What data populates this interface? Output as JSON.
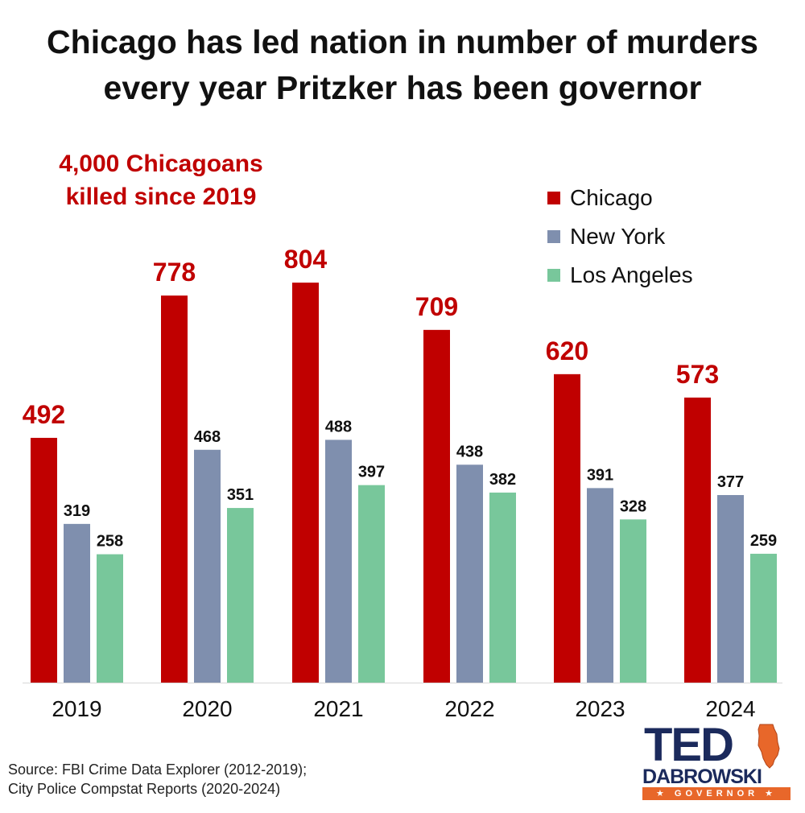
{
  "title": {
    "line1": "Chicago has led nation in number of murders",
    "line2": "every year Pritzker has been governor"
  },
  "callout": {
    "line1": "4,000 Chicagoans",
    "line2": "killed since 2019"
  },
  "source": {
    "line1": "Source: FBI Crime Data Explorer (2012-2019);",
    "line2": "City Police Compstat Reports (2020-2024)"
  },
  "logo": {
    "top": "TED",
    "name": "DABROWSKI",
    "tagline": "★ GOVERNOR ★",
    "colors": {
      "navy": "#1b2a5c",
      "orange": "#e8672a"
    },
    "icon": "illinois-state-icon"
  },
  "chart_data": {
    "type": "bar",
    "categories": [
      "2019",
      "2020",
      "2021",
      "2022",
      "2023",
      "2024"
    ],
    "series": [
      {
        "name": "Chicago",
        "color": "#c00000",
        "values": [
          492,
          778,
          804,
          709,
          620,
          573
        ]
      },
      {
        "name": "New York",
        "color": "#7f8fae",
        "values": [
          319,
          468,
          488,
          438,
          391,
          377
        ]
      },
      {
        "name": "Los Angeles",
        "color": "#78c79b",
        "values": [
          258,
          351,
          397,
          382,
          328,
          259
        ]
      }
    ],
    "ylim": [
      0,
      900
    ],
    "grid": false,
    "legend": "top-right",
    "data_labels": true
  }
}
